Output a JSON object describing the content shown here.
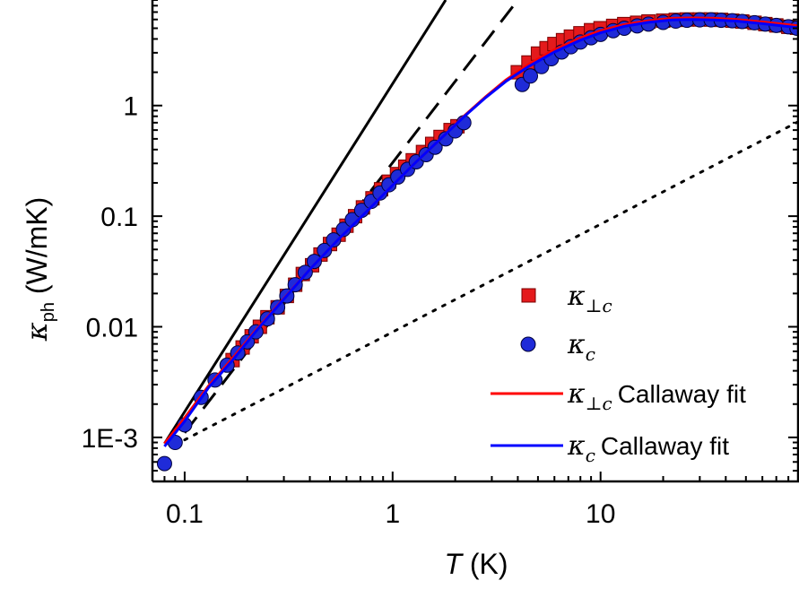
{
  "chart_data": {
    "type": "scatter",
    "xscale": "log",
    "yscale": "log",
    "xlim": [
      0.07,
      90
    ],
    "ylim": [
      0.0004,
      9
    ],
    "x_ticks": [
      0.1,
      1,
      10
    ],
    "x_tick_labels": [
      "0.1",
      "1",
      "10"
    ],
    "y_ticks": [
      0.001,
      0.01,
      0.1,
      1
    ],
    "y_tick_labels": [
      "1E-3",
      "0.01",
      "0.1",
      "1"
    ],
    "xlabel": {
      "var": "T",
      "unit": "(K)"
    },
    "ylabel": {
      "var": "κ",
      "sub": "ph",
      "unit": "(W/mK)"
    },
    "legend_position": "bottom-right",
    "series": [
      {
        "name": {
          "sym": "κ",
          "sub": "⊥c",
          "text": ""
        },
        "kind": "scatter",
        "marker": "square",
        "color": "#e41a1c",
        "x": [
          0.17,
          0.19,
          0.21,
          0.23,
          0.25,
          0.28,
          0.31,
          0.34,
          0.37,
          0.41,
          0.45,
          0.5,
          0.55,
          0.6,
          0.66,
          0.72,
          0.8,
          0.88,
          0.96,
          1.05,
          1.15,
          1.25,
          1.4,
          1.55,
          1.7,
          1.9,
          2.05,
          4.0,
          4.5,
          5.0,
          5.5,
          6.0,
          6.6,
          7.2,
          8.0,
          9.0,
          10,
          11.5,
          13,
          15,
          17,
          20,
          23,
          26,
          30,
          34,
          38,
          43,
          48,
          55,
          62,
          70,
          80,
          88
        ],
        "y": [
          0.005,
          0.0065,
          0.0082,
          0.01,
          0.0122,
          0.015,
          0.019,
          0.024,
          0.03,
          0.036,
          0.045,
          0.056,
          0.068,
          0.082,
          0.1,
          0.12,
          0.145,
          0.175,
          0.205,
          0.24,
          0.28,
          0.32,
          0.38,
          0.45,
          0.52,
          0.6,
          0.65,
          2.0,
          2.45,
          2.95,
          3.3,
          3.6,
          3.9,
          4.2,
          4.5,
          4.8,
          5.0,
          5.25,
          5.45,
          5.6,
          5.75,
          5.85,
          5.95,
          6.0,
          6.0,
          6.0,
          5.95,
          5.85,
          5.75,
          5.6,
          5.45,
          5.3,
          5.15,
          5.05
        ]
      },
      {
        "name": {
          "sym": "κ",
          "sub": "c",
          "text": ""
        },
        "kind": "scatter",
        "marker": "circle",
        "color": "#1f2bd8",
        "x": [
          0.08,
          0.09,
          0.1,
          0.12,
          0.14,
          0.16,
          0.18,
          0.2,
          0.22,
          0.25,
          0.28,
          0.31,
          0.34,
          0.38,
          0.42,
          0.47,
          0.52,
          0.58,
          0.64,
          0.71,
          0.79,
          0.87,
          0.96,
          1.06,
          1.18,
          1.3,
          1.45,
          1.6,
          1.8,
          2.0,
          2.2,
          4.2,
          4.6,
          5.2,
          5.8,
          6.5,
          7.2,
          8.0,
          9.0,
          10,
          11.5,
          13,
          15,
          17,
          20,
          23,
          26,
          30,
          34,
          38,
          43,
          48,
          55,
          62,
          70,
          80,
          88
        ],
        "y": [
          0.00058,
          0.0009,
          0.0013,
          0.0023,
          0.0033,
          0.0045,
          0.0058,
          0.0073,
          0.009,
          0.0118,
          0.015,
          0.019,
          0.024,
          0.031,
          0.039,
          0.049,
          0.061,
          0.076,
          0.093,
          0.113,
          0.136,
          0.162,
          0.192,
          0.226,
          0.265,
          0.31,
          0.36,
          0.42,
          0.5,
          0.59,
          0.7,
          1.55,
          1.85,
          2.25,
          2.65,
          3.05,
          3.4,
          3.75,
          4.1,
          4.4,
          4.75,
          5.0,
          5.25,
          5.45,
          5.65,
          5.8,
          5.9,
          5.95,
          5.95,
          5.9,
          5.85,
          5.75,
          5.6,
          5.45,
          5.3,
          5.15,
          5.0
        ]
      },
      {
        "name": {
          "sym": "κ",
          "sub": "⊥c",
          "text": "Callaway fit"
        },
        "kind": "line",
        "color": "#ff0000",
        "x": [
          0.08,
          0.1,
          0.13,
          0.17,
          0.22,
          0.3,
          0.4,
          0.55,
          0.75,
          1.0,
          1.3,
          1.7,
          2.2,
          2.8,
          3.5,
          4.5,
          6,
          8,
          10,
          13,
          17,
          22,
          28,
          35,
          45,
          60,
          75,
          90
        ],
        "y": [
          0.00088,
          0.0015,
          0.0029,
          0.0052,
          0.0093,
          0.018,
          0.033,
          0.062,
          0.11,
          0.19,
          0.31,
          0.5,
          0.8,
          1.2,
          1.7,
          2.35,
          3.2,
          4.1,
          4.75,
          5.4,
          5.85,
          6.15,
          6.2,
          6.15,
          6.0,
          5.7,
          5.45,
          5.25
        ]
      },
      {
        "name": {
          "sym": "κ",
          "sub": "c",
          "text": "Callaway fit"
        },
        "kind": "line",
        "color": "#0000ff",
        "x": [
          0.08,
          0.1,
          0.13,
          0.17,
          0.22,
          0.3,
          0.4,
          0.55,
          0.75,
          1.0,
          1.3,
          1.7,
          2.2,
          2.8,
          3.5,
          4.5,
          6,
          8,
          10,
          13,
          17,
          22,
          28,
          35,
          45,
          60,
          75,
          90
        ],
        "y": [
          0.00083,
          0.0014,
          0.0028,
          0.005,
          0.0091,
          0.0178,
          0.033,
          0.062,
          0.11,
          0.19,
          0.31,
          0.5,
          0.79,
          1.18,
          1.65,
          2.25,
          3.05,
          3.9,
          4.55,
          5.2,
          5.65,
          5.95,
          6.0,
          5.95,
          5.8,
          5.5,
          5.25,
          5.05
        ]
      }
    ],
    "reference_lines": [
      {
        "style": "solid",
        "color": "#000000",
        "x": [
          0.08,
          1.8
        ],
        "y": [
          0.00088,
          9.0
        ]
      },
      {
        "style": "dashed",
        "color": "#000000",
        "x": [
          0.1,
          4.0
        ],
        "y": [
          0.0011,
          9.0
        ]
      },
      {
        "style": "dotted",
        "color": "#000000",
        "x": [
          0.1,
          90
        ],
        "y": [
          0.00095,
          0.72
        ]
      }
    ]
  }
}
